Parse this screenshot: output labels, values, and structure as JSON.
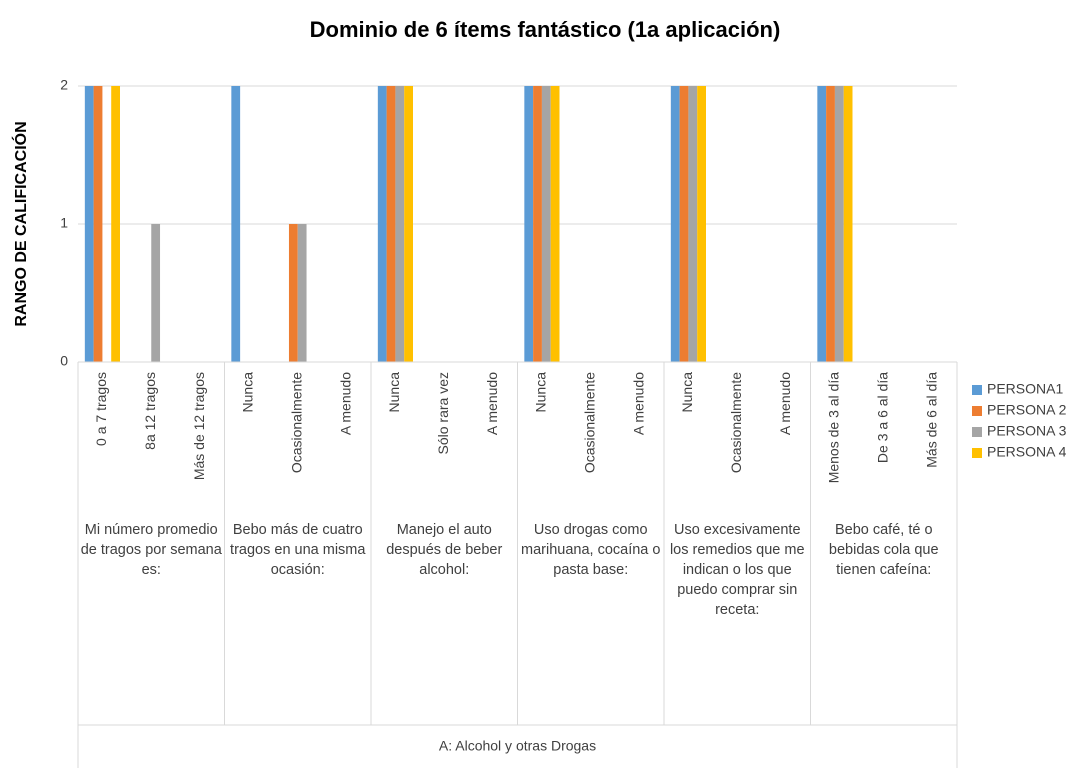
{
  "chart_data": {
    "type": "bar",
    "title": "Dominio de 6 ítems fantástico (1a aplicación)",
    "y_label": "RANGO DE CALIFICACIÓN",
    "super_category": "A: Alcohol y otras Drogas",
    "category_groups": [
      {
        "name": "Mi número promedio de tragos por semana es:",
        "items": [
          "0 a 7 tragos",
          "8a 12 tragos",
          "Más de 12 tragos"
        ]
      },
      {
        "name": "Bebo más de cuatro tragos en una misma ocasión:",
        "items": [
          "Nunca",
          "Ocasionalmente",
          "A menudo"
        ]
      },
      {
        "name": "Manejo el auto después de beber alcohol:",
        "items": [
          "Nunca",
          "Sólo rara vez",
          "A menudo"
        ]
      },
      {
        "name": "Uso drogas como marihuana, cocaína o pasta base:",
        "items": [
          "Nunca",
          "Ocasionalmente",
          "A menudo"
        ]
      },
      {
        "name": "Uso excesivamente los remedios que me indican o los que puedo comprar sin receta:",
        "items": [
          "Nunca",
          "Ocasionalmente",
          "A menudo"
        ]
      },
      {
        "name": "Bebo café, té o bebidas cola que tienen cafeína:",
        "items": [
          "Menos de 3 al día",
          "De 3 a 6 al día",
          "Más de 6 al día"
        ]
      }
    ],
    "series": [
      {
        "name": "PERSONA1",
        "color": "#5b9bd5",
        "values": [
          2,
          0,
          0,
          2,
          0,
          0,
          2,
          0,
          0,
          2,
          0,
          0,
          2,
          0,
          0,
          2,
          0,
          0
        ]
      },
      {
        "name": "PERSONA 2",
        "color": "#ed7d31",
        "values": [
          2,
          0,
          0,
          0,
          1,
          0,
          2,
          0,
          0,
          2,
          0,
          0,
          2,
          0,
          0,
          2,
          0,
          0
        ]
      },
      {
        "name": "PERSONA 3",
        "color": "#a5a5a5",
        "values": [
          0,
          1,
          0,
          0,
          1,
          0,
          2,
          0,
          0,
          2,
          0,
          0,
          2,
          0,
          0,
          2,
          0,
          0
        ]
      },
      {
        "name": "PERSONA 4",
        "color": "#ffc000",
        "values": [
          2,
          0,
          0,
          0,
          0,
          0,
          2,
          0,
          0,
          2,
          0,
          0,
          2,
          0,
          0,
          2,
          0,
          0
        ]
      }
    ],
    "ylim": [
      0,
      2
    ],
    "yticks": [
      0,
      1,
      2
    ],
    "grid": true,
    "legend": "right"
  }
}
